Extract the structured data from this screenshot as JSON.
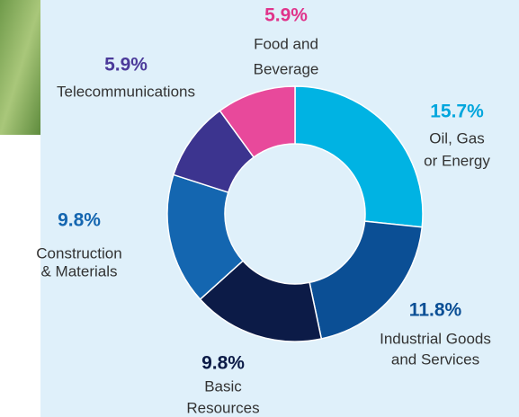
{
  "chart_data": {
    "type": "donut",
    "categories": [
      [
        "Oil, Gas",
        "or Energy"
      ],
      [
        "Industrial Goods",
        "and Services"
      ],
      [
        "Basic",
        "Resources"
      ],
      [
        "Construction",
        "& Materials"
      ],
      [
        "Telecommunications"
      ],
      [
        "Food and",
        "Beverage"
      ]
    ],
    "values": [
      15.7,
      11.8,
      9.8,
      9.8,
      5.9,
      5.9
    ],
    "value_labels": [
      "15.7%",
      "11.8%",
      "9.8%",
      "9.8%",
      "5.9%",
      "5.9%"
    ],
    "colors": [
      "#00b3e3",
      "#0b4f95",
      "#0c1b47",
      "#1466b0",
      "#3c348f",
      "#e8499b"
    ],
    "label_colors": [
      "#00a6dd",
      "#0b4f95",
      "#0c1b47",
      "#1466b0",
      "#4b3a9a",
      "#e0348b"
    ]
  }
}
